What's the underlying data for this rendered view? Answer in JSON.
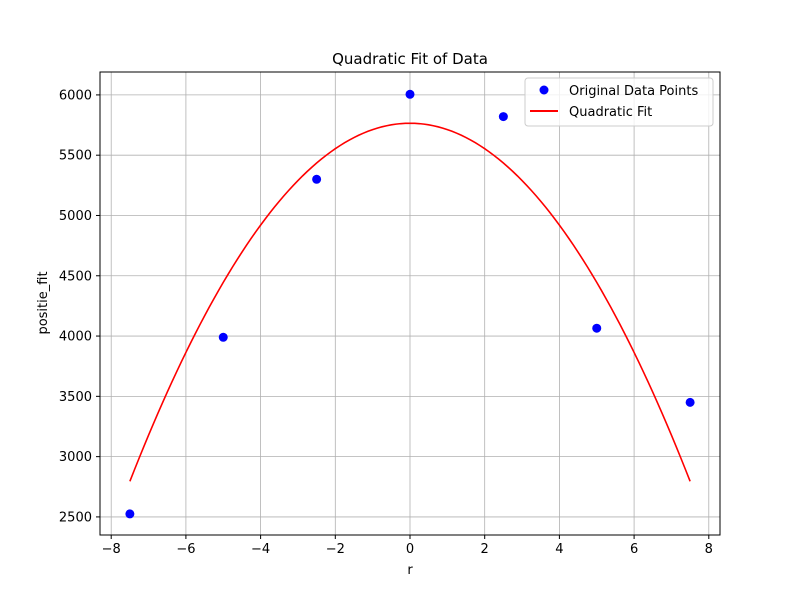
{
  "chart_data": {
    "type": "scatter",
    "title": "Quadratic Fit of Data",
    "xlabel": "r",
    "ylabel": "positie_fit",
    "xlim": [
      -8.3,
      8.3
    ],
    "ylim": [
      2350,
      6190
    ],
    "xticks": [
      -8,
      -6,
      -4,
      -2,
      0,
      2,
      4,
      6,
      8
    ],
    "xtick_labels": [
      "−8",
      "−6",
      "−4",
      "−2",
      "0",
      "2",
      "4",
      "6",
      "8"
    ],
    "yticks": [
      2500,
      3000,
      3500,
      4000,
      4500,
      5000,
      5500,
      6000
    ],
    "ytick_labels": [
      "2500",
      "3000",
      "3500",
      "4000",
      "4500",
      "5000",
      "5500",
      "6000"
    ],
    "grid": true,
    "legend_position": "top-right",
    "series": [
      {
        "name": "Original Data Points",
        "kind": "scatter",
        "color": "#0000ff",
        "x": [
          -7.5,
          -5,
          -2.5,
          0,
          2.5,
          5,
          7.5
        ],
        "y": [
          2525,
          3990,
          5300,
          6005,
          5820,
          4065,
          3450
        ]
      },
      {
        "name": "Quadratic Fit",
        "kind": "line",
        "color": "#ff0000",
        "x_range": [
          -7.5,
          7.5
        ],
        "coefficients": {
          "a": -52.8,
          "b": 0,
          "c": 5765
        }
      }
    ]
  }
}
